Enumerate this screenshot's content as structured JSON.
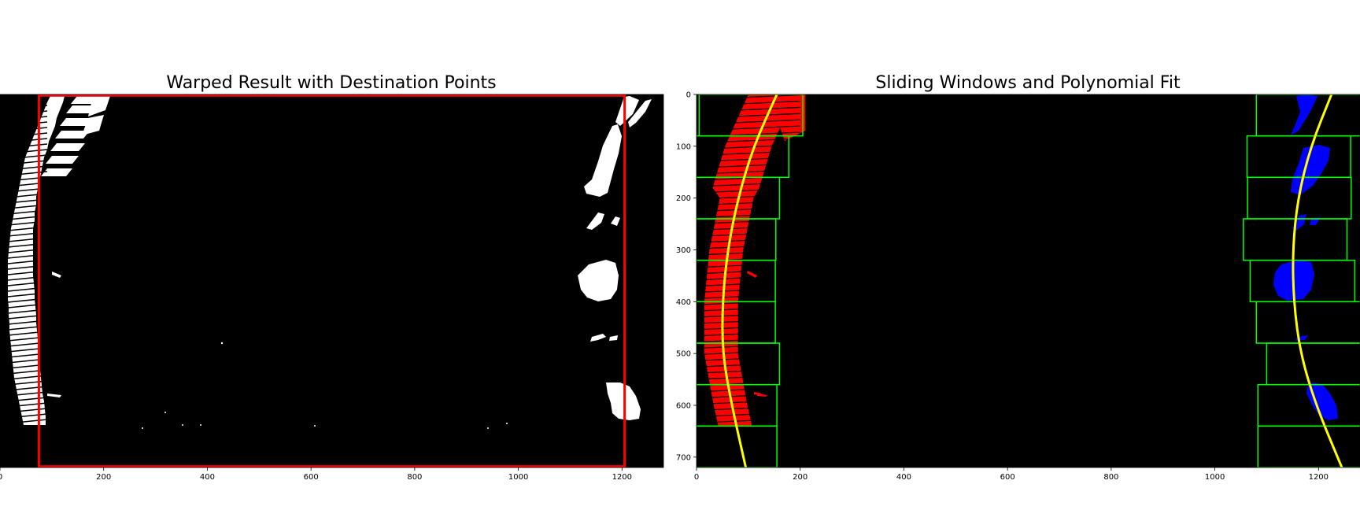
{
  "chart_data": [
    {
      "type": "image",
      "title": "Warped Result with Destination Points",
      "xlim": [
        0,
        1280
      ],
      "ylim": [
        720,
        0
      ],
      "xticks": [
        0,
        200,
        400,
        600,
        800,
        1000,
        1200
      ],
      "xtick_labels": [
        "0",
        "200",
        "400",
        "600",
        "800",
        "1000",
        "1200"
      ],
      "yticks": [],
      "destination_rectangle": {
        "color": "#ff0000",
        "x": [
          75,
          1205
        ],
        "y": [
          2,
          718
        ]
      },
      "colors": {
        "background": "#000000",
        "lane_pixels": "#ffffff"
      }
    },
    {
      "type": "image",
      "title": "Sliding Windows and Polynomial Fit",
      "xlim": [
        0,
        1280
      ],
      "ylim": [
        720,
        0
      ],
      "xticks": [
        0,
        200,
        400,
        600,
        800,
        1000,
        1200
      ],
      "xtick_labels": [
        "0",
        "200",
        "400",
        "600",
        "800",
        "1000",
        "1200"
      ],
      "yticks": [
        0,
        100,
        200,
        300,
        400,
        500,
        600,
        700
      ],
      "ytick_labels": [
        "0",
        "100",
        "200",
        "300",
        "400",
        "500",
        "600",
        "700"
      ],
      "left_lane": {
        "color": "#ff0000",
        "fit_color": "#ffff00",
        "fit_points": [
          [
            155,
            0
          ],
          [
            110,
            100
          ],
          [
            80,
            200
          ],
          [
            60,
            300
          ],
          [
            50,
            400
          ],
          [
            50,
            500
          ],
          [
            68,
            600
          ],
          [
            95,
            720
          ]
        ],
        "windows": [
          {
            "x": [
              5,
              205
            ],
            "y": [
              0,
              80
            ]
          },
          {
            "x": [
              -20,
              178
            ],
            "y": [
              80,
              160
            ]
          },
          {
            "x": [
              -35,
              160
            ],
            "y": [
              160,
              240
            ]
          },
          {
            "x": [
              -35,
              153
            ],
            "y": [
              240,
              320
            ]
          },
          {
            "x": [
              -35,
              152
            ],
            "y": [
              320,
              400
            ]
          },
          {
            "x": [
              -35,
              152
            ],
            "y": [
              400,
              480
            ]
          },
          {
            "x": [
              -35,
              160
            ],
            "y": [
              480,
              560
            ]
          },
          {
            "x": [
              -35,
              155
            ],
            "y": [
              560,
              640
            ]
          },
          {
            "x": [
              -35,
              155
            ],
            "y": [
              640,
              720
            ]
          }
        ]
      },
      "right_lane": {
        "color": "#0000ff",
        "fit_color": "#ffff00",
        "fit_points": [
          [
            1225,
            0
          ],
          [
            1185,
            100
          ],
          [
            1160,
            200
          ],
          [
            1150,
            300
          ],
          [
            1152,
            400
          ],
          [
            1165,
            500
          ],
          [
            1195,
            600
          ],
          [
            1245,
            720
          ]
        ],
        "windows": [
          {
            "x": [
              1080,
              1300
            ],
            "y": [
              0,
              80
            ]
          },
          {
            "x": [
              1062,
              1262
            ],
            "y": [
              80,
              160
            ]
          },
          {
            "x": [
              1063,
              1263
            ],
            "y": [
              160,
              240
            ]
          },
          {
            "x": [
              1055,
              1255
            ],
            "y": [
              240,
              320
            ]
          },
          {
            "x": [
              1068,
              1270
            ],
            "y": [
              320,
              400
            ]
          },
          {
            "x": [
              1080,
              1300
            ],
            "y": [
              400,
              480
            ]
          },
          {
            "x": [
              1100,
              1300
            ],
            "y": [
              480,
              560
            ]
          },
          {
            "x": [
              1083,
              1300
            ],
            "y": [
              560,
              640
            ]
          },
          {
            "x": [
              1083,
              1300
            ],
            "y": [
              640,
              720
            ]
          }
        ]
      },
      "window_color": "#00ff00",
      "colors": {
        "background": "#000000"
      }
    }
  ]
}
